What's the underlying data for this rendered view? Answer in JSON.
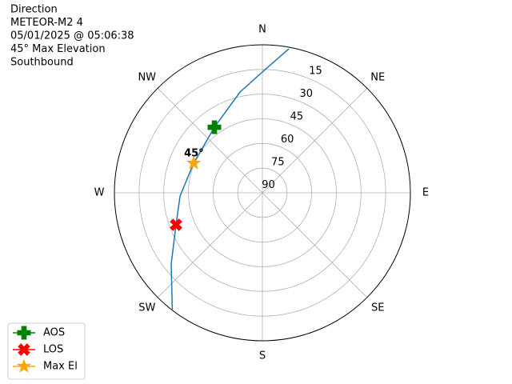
{
  "chart_data": {
    "type": "polar",
    "title_lines": [
      "Direction",
      "METEOR-M2 4",
      "05/01/2025 @ 05:06:38",
      "45° Max Elevation",
      "Southbound"
    ],
    "theta_ticks": [
      {
        "value": 0,
        "label": "N"
      },
      {
        "value": 45,
        "label": "NE"
      },
      {
        "value": 90,
        "label": "E"
      },
      {
        "value": 135,
        "label": "SE"
      },
      {
        "value": 180,
        "label": "S"
      },
      {
        "value": 225,
        "label": "SW"
      },
      {
        "value": 270,
        "label": "W"
      },
      {
        "value": 315,
        "label": "NW"
      }
    ],
    "rlim": [
      90,
      0
    ],
    "rticks": [
      90,
      75,
      60,
      45,
      30,
      15
    ],
    "grid": true,
    "track": {
      "color": "#1f77b4",
      "az": [
        10.4,
        0,
        347.5,
        323.8,
        293.3,
        267.8,
        249.7,
        232,
        217.5
      ],
      "el": [
        1,
        16.5,
        27.2,
        40.6,
        44.5,
        39.9,
        34,
        19.6,
        0
      ]
    },
    "series": [
      {
        "name": "AOS",
        "color": "#008000",
        "marker": "plus",
        "az": 323.8,
        "el": 40.6
      },
      {
        "name": "LOS",
        "color": "#ff0000",
        "marker": "x",
        "az": 249.7,
        "el": 34
      },
      {
        "name": "Max El",
        "color": "#ffa500",
        "marker": "star",
        "az": 293.3,
        "el": 44.5
      }
    ],
    "annotation": "45°",
    "legend": "lower left"
  }
}
